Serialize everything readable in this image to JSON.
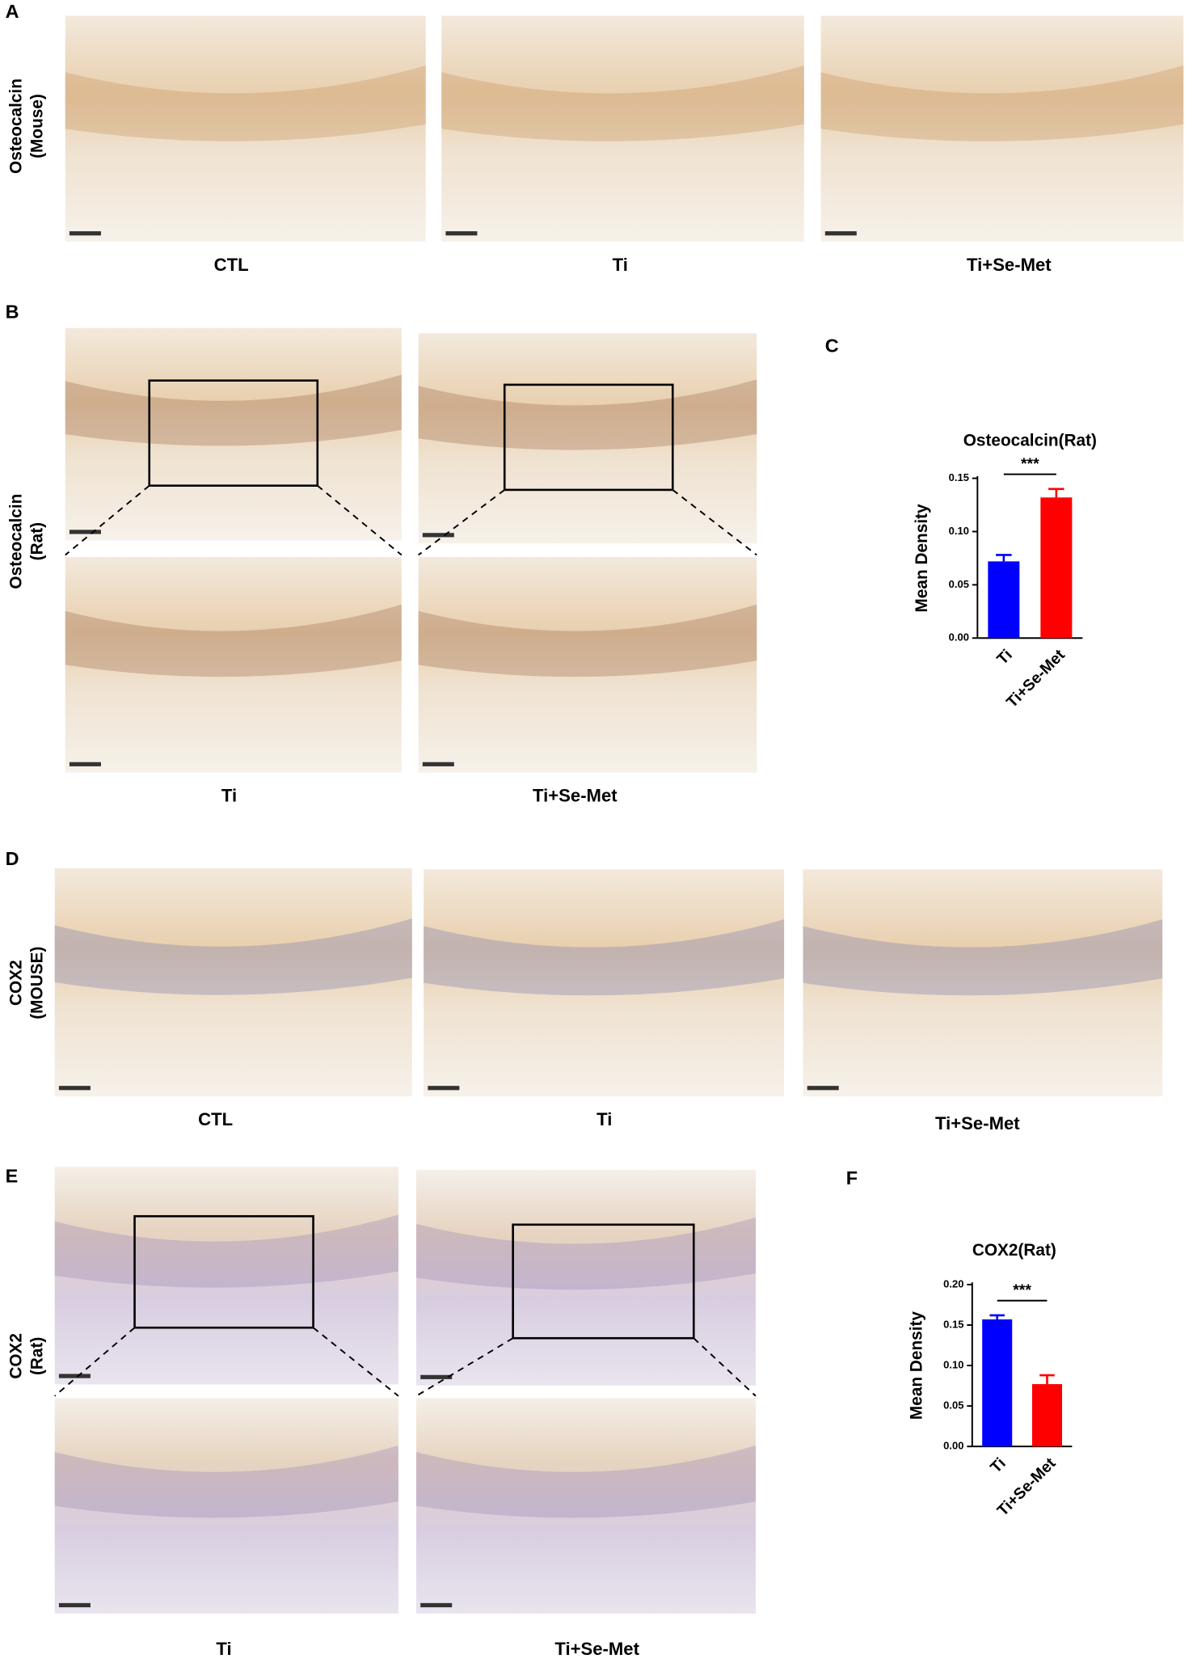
{
  "figure": {
    "panels": [
      "A",
      "B",
      "C",
      "D",
      "E",
      "F"
    ],
    "row_labels": [
      [
        "Osteocalcin",
        "(Mouse)"
      ],
      [
        "Osteocalcin",
        "(Rat)"
      ],
      [
        "COX2",
        "(MOUSE)"
      ],
      [
        "COX2",
        "(Rat)"
      ]
    ],
    "captions_a": [
      "CTL",
      "Ti",
      "Ti+Se-Met"
    ],
    "captions_b": [
      "Ti",
      "Ti+Se-Met"
    ],
    "captions_d": [
      "CTL",
      "Ti",
      "Ti+Se-Met"
    ],
    "captions_e": [
      "Ti",
      "Ti+Se-Met"
    ]
  },
  "chart_data": [
    {
      "type": "bar",
      "title": "Osteocalcin(Rat)",
      "ylabel": "Mean Density",
      "categories": [
        "Ti",
        "Ti+Se-Met"
      ],
      "values": [
        0.072,
        0.132
      ],
      "errors": [
        0.006,
        0.008
      ],
      "colors": [
        "#0000ff",
        "#ff0000"
      ],
      "annotation": "***",
      "ylim": [
        0,
        0.15
      ],
      "yticks": [
        {
          "value": 0,
          "label": "0.00"
        },
        {
          "value": 0.05,
          "label": "0.05"
        },
        {
          "value": 0.1,
          "label": "0.10"
        },
        {
          "value": 0.15,
          "label": "0.15"
        }
      ]
    },
    {
      "type": "bar",
      "title": "COX2(Rat)",
      "ylabel": "Mean Density",
      "categories": [
        "Ti",
        "Ti+Se-Met"
      ],
      "values": [
        0.157,
        0.077
      ],
      "errors": [
        0.005,
        0.011
      ],
      "colors": [
        "#0000ff",
        "#ff0000"
      ],
      "annotation": "***",
      "ylim": [
        0,
        0.2
      ],
      "yticks": [
        {
          "value": 0,
          "label": "0.00"
        },
        {
          "value": 0.05,
          "label": "0.05"
        },
        {
          "value": 0.1,
          "label": "0.10"
        },
        {
          "value": 0.15,
          "label": "0.15"
        },
        {
          "value": 0.2,
          "label": "0.20"
        }
      ]
    }
  ]
}
